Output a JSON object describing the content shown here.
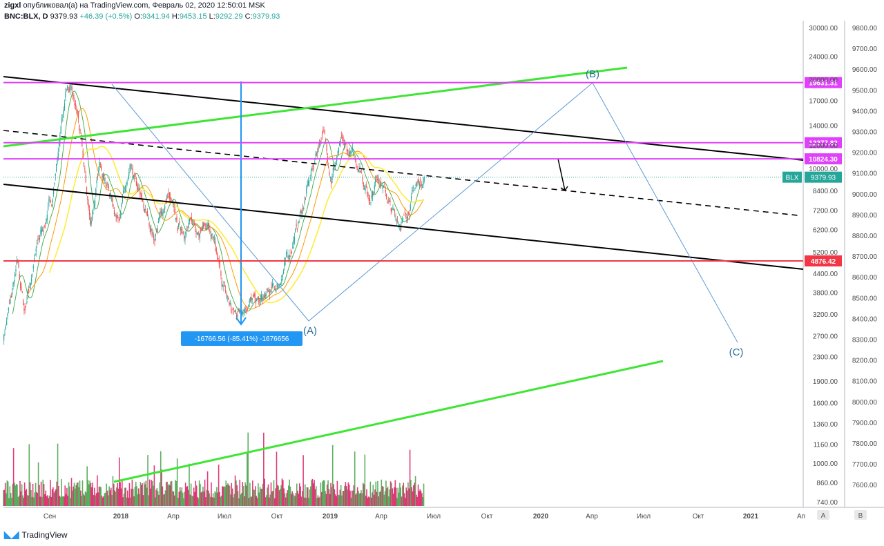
{
  "header": {
    "author": "zigxl",
    "published_text": "опубликовал(а) на TradingView.com, Февраль 02, 2020 12:50:01 MSK",
    "symbol": "BNC:BLX, D",
    "last": "9379.93",
    "change": "+46.39 (+0.5%)",
    "o_label": "O:",
    "o_value": "9341.94",
    "h_label": "H:",
    "h_value": "9453.15",
    "l_label": "L:",
    "l_value": "9292.29",
    "c_label": "C:",
    "c_value": "9379.93"
  },
  "footer": {
    "brand": "TradingView"
  },
  "chart_data": {
    "type": "candlestick",
    "scale": "log",
    "grid": false,
    "price_axis_a": [
      "30000.00",
      "24000.00",
      "20000.00",
      "17000.00",
      "14000.00",
      "12000.00",
      "10000.00",
      "8400.00",
      "7200.00",
      "6200.00",
      "5200.00",
      "4400.00",
      "3800.00",
      "3200.00",
      "2700.00",
      "2300.00",
      "1900.00",
      "1600.00",
      "1360.00",
      "1160.00",
      "1000.00",
      "860.00",
      "740.00"
    ],
    "price_axis_b": [
      "9800.00",
      "9700.00",
      "9600.00",
      "9500.00",
      "9400.00",
      "9300.00",
      "9200.00",
      "9100.00",
      "9000.00",
      "8900.00",
      "8800.00",
      "8700.00",
      "8600.00",
      "8500.00",
      "8400.00",
      "8300.00",
      "8200.00",
      "8100.00",
      "8000.00",
      "7900.00",
      "7800.00",
      "7700.00",
      "7600.00"
    ],
    "time_axis": [
      "Сен",
      "2018",
      "Апр",
      "Июл",
      "Окт",
      "2019",
      "Апр",
      "Июл",
      "Окт",
      "2020",
      "Апр",
      "Июл",
      "Окт",
      "2021",
      "Ап"
    ],
    "axis_scale_labels": [
      "A",
      "B"
    ],
    "price_levels": [
      {
        "label": "19631.31",
        "value": 19631.31,
        "color": "#e040fb"
      },
      {
        "label": "12277.82",
        "value": 12277.82,
        "color": "#e040fb"
      },
      {
        "label": "10824.30",
        "value": 10824.3,
        "color": "#e040fb"
      },
      {
        "label": "4876.42",
        "value": 4876.42,
        "color": "#f23645"
      }
    ],
    "current_price": {
      "symbol": "BLX",
      "label": "9379.93",
      "value": 9379.93,
      "color": "#26a69a"
    },
    "measure": {
      "label": "-16766.56 (-85.41%) -1676656",
      "color": "#2196f3"
    },
    "wave_labels": [
      "(A)",
      "(B)",
      "(C)"
    ],
    "price_series": [
      {
        "t": "2017-08-01",
        "p": 2700
      },
      {
        "t": "2017-09-01",
        "p": 4700
      },
      {
        "t": "2017-09-15",
        "p": 3300
      },
      {
        "t": "2017-10-15",
        "p": 5600
      },
      {
        "t": "2017-11-15",
        "p": 8000
      },
      {
        "t": "2017-12-17",
        "p": 19600
      },
      {
        "t": "2018-01-10",
        "p": 15000
      },
      {
        "t": "2018-02-06",
        "p": 6500
      },
      {
        "t": "2018-03-01",
        "p": 10500
      },
      {
        "t": "2018-04-05",
        "p": 6900
      },
      {
        "t": "2018-05-05",
        "p": 9600
      },
      {
        "t": "2018-06-25",
        "p": 5900
      },
      {
        "t": "2018-07-25",
        "p": 8200
      },
      {
        "t": "2018-08-15",
        "p": 6300
      },
      {
        "t": "2018-10-20",
        "p": 6500
      },
      {
        "t": "2018-11-25",
        "p": 3800
      },
      {
        "t": "2018-12-15",
        "p": 3200
      },
      {
        "t": "2019-01-15",
        "p": 3600
      },
      {
        "t": "2019-02-10",
        "p": 3500
      },
      {
        "t": "2019-03-20",
        "p": 4000
      },
      {
        "t": "2019-04-15",
        "p": 5200
      },
      {
        "t": "2019-05-20",
        "p": 8000
      },
      {
        "t": "2019-06-26",
        "p": 13800
      },
      {
        "t": "2019-07-15",
        "p": 9500
      },
      {
        "t": "2019-08-05",
        "p": 12000
      },
      {
        "t": "2019-09-15",
        "p": 10300
      },
      {
        "t": "2019-10-05",
        "p": 8000
      },
      {
        "t": "2019-10-26",
        "p": 9800
      },
      {
        "t": "2019-11-25",
        "p": 7000
      },
      {
        "t": "2019-12-18",
        "p": 6600
      },
      {
        "t": "2020-01-15",
        "p": 8800
      },
      {
        "t": "2020-02-02",
        "p": 9380
      }
    ]
  }
}
